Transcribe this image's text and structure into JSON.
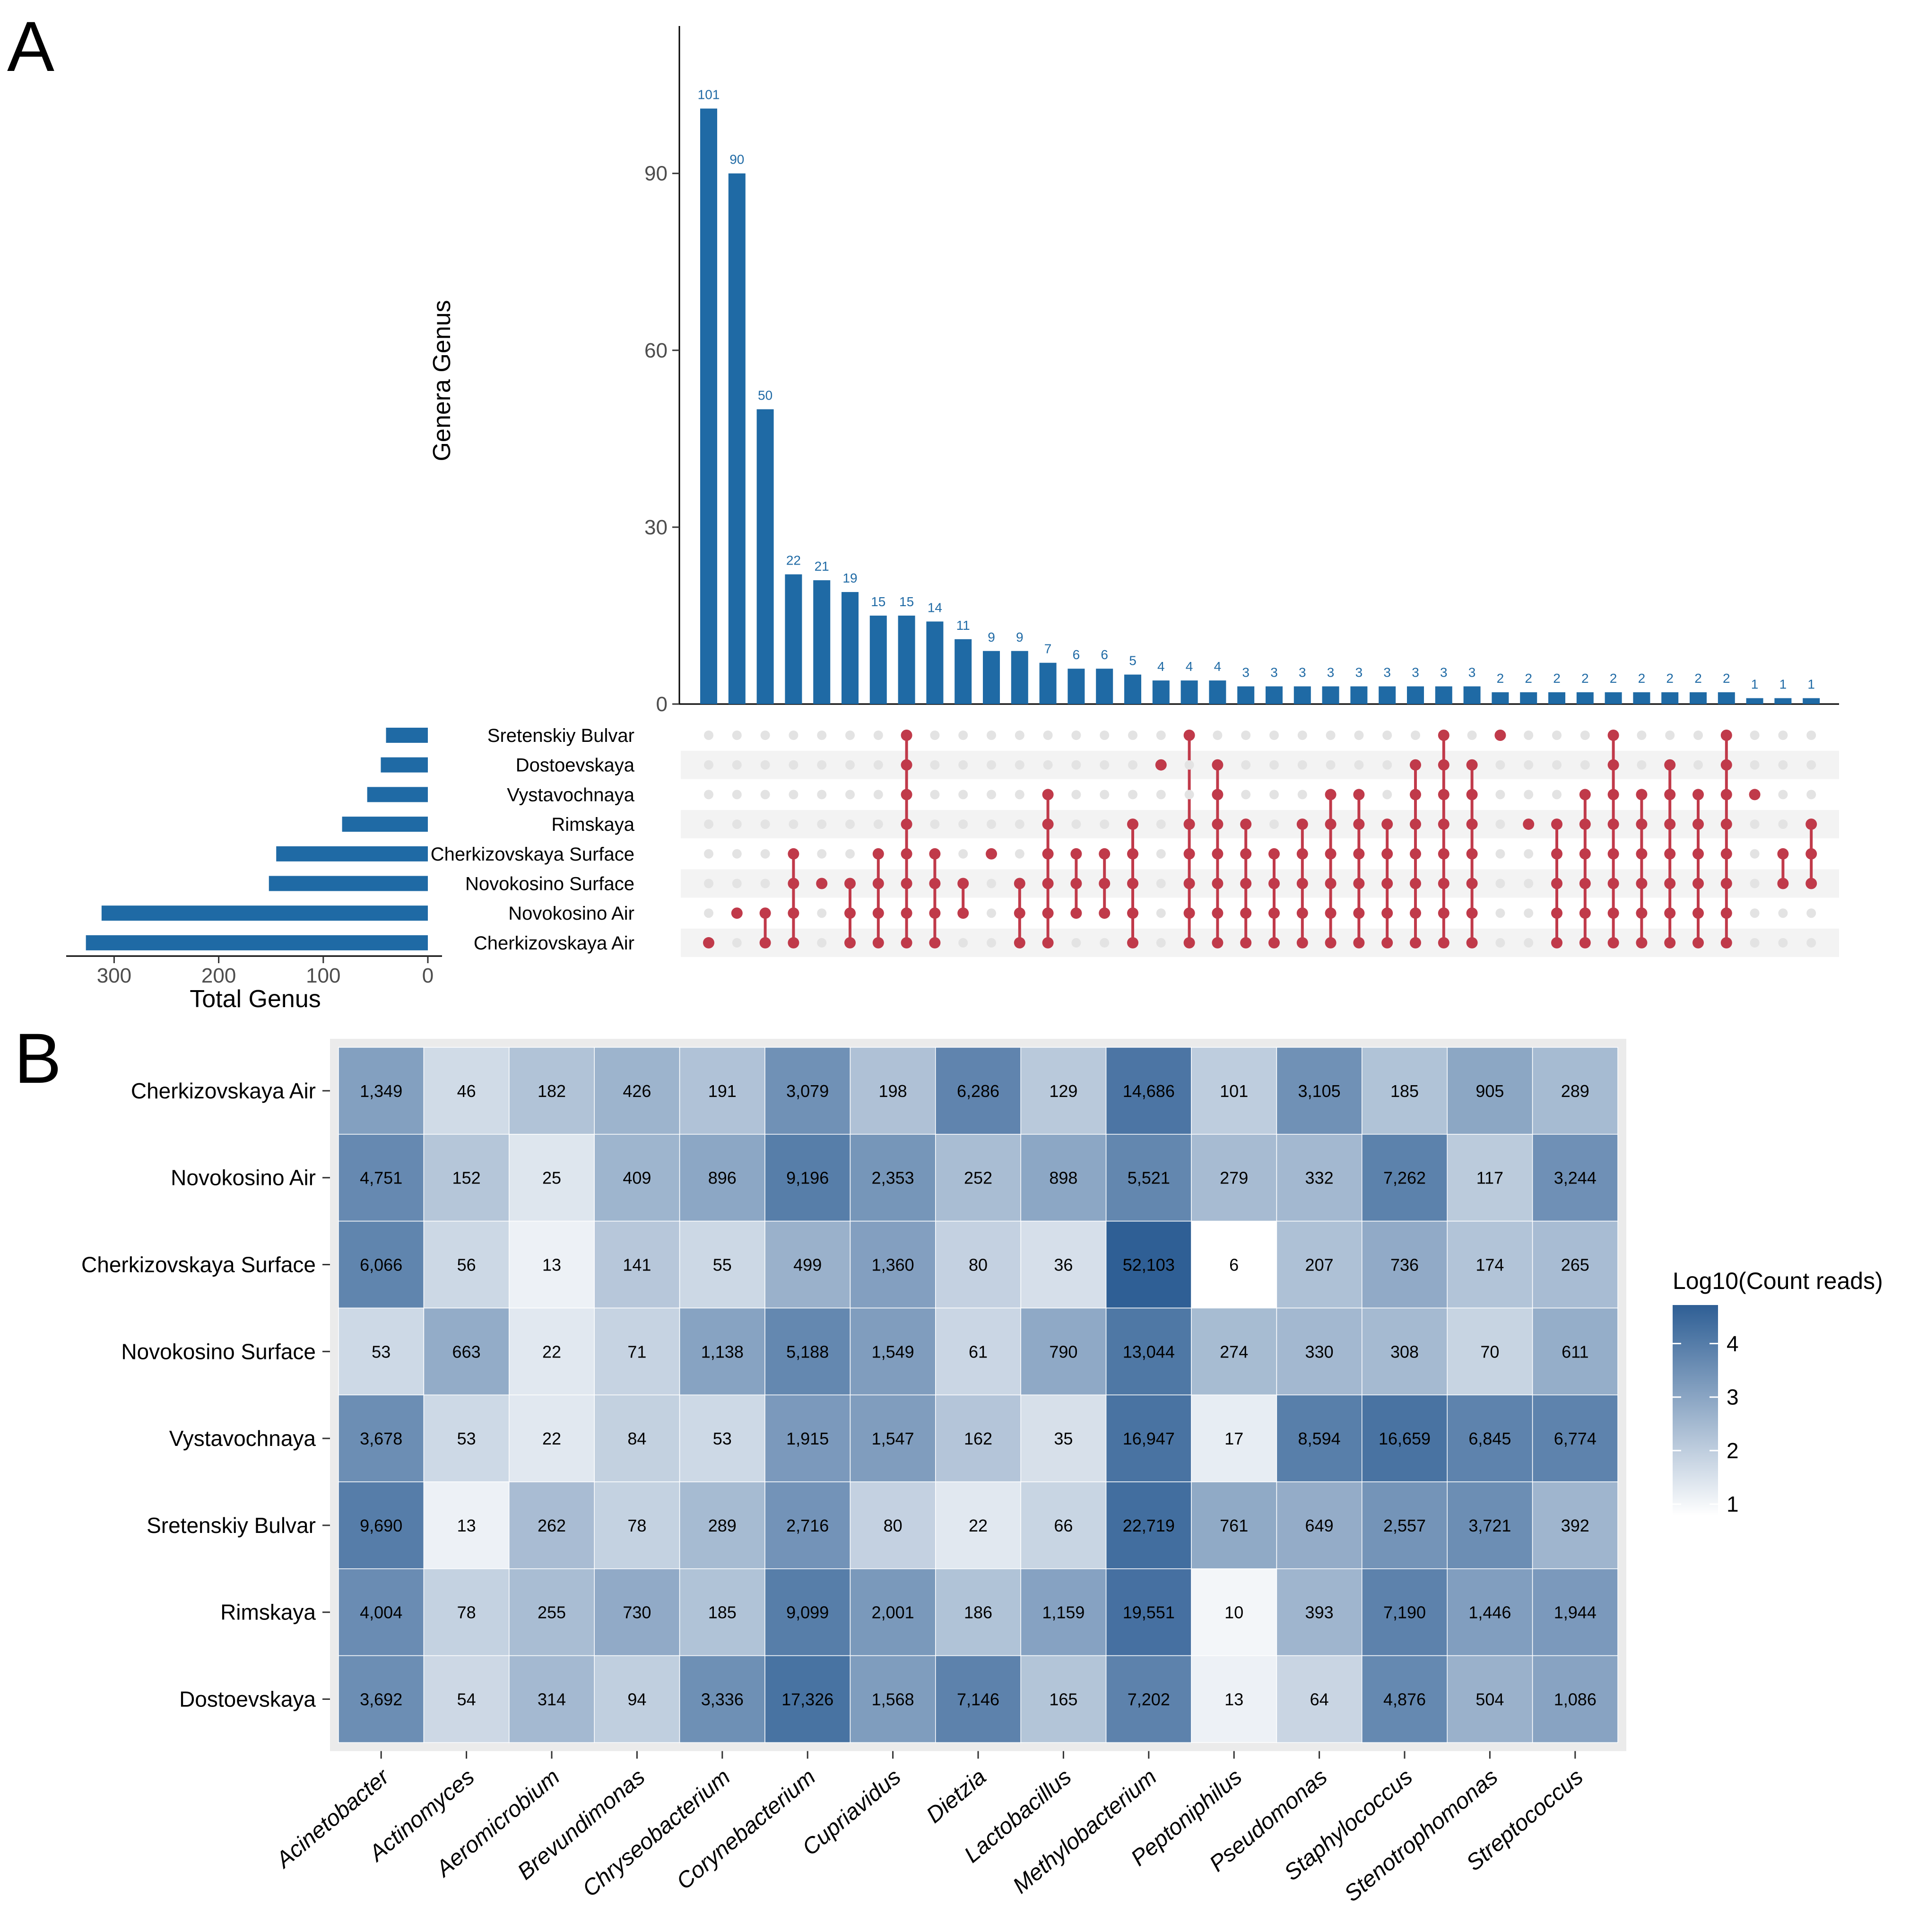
{
  "panels": {
    "a_label": "A",
    "b_label": "B"
  },
  "chart_data": [
    {
      "type": "bar",
      "role": "upset-intersection-sizes",
      "ylabel": "Genera Genus",
      "ylim": [
        0,
        115
      ],
      "yticks": [
        0,
        30,
        60,
        90
      ],
      "values": [
        101,
        90,
        50,
        22,
        21,
        19,
        15,
        15,
        14,
        11,
        9,
        9,
        7,
        6,
        6,
        5,
        4,
        4,
        4,
        3,
        3,
        3,
        3,
        3,
        3,
        3,
        3,
        3,
        2,
        2,
        2,
        2,
        2,
        2,
        2,
        2,
        2,
        1,
        1,
        1
      ],
      "sets": [
        "Sretenskiy Bulvar",
        "Dostoevskaya",
        "Vystavochnaya",
        "Rimskaya",
        "Cherkizovskaya Surface",
        "Novokosino Surface",
        "Novokosino Air",
        "Cherkizovskaya Air"
      ],
      "memberships": [
        [
          7
        ],
        [
          6
        ],
        [
          6,
          7
        ],
        [
          4,
          5,
          6,
          7
        ],
        [
          5
        ],
        [
          5,
          6,
          7
        ],
        [
          4,
          5,
          6,
          7
        ],
        [
          0,
          1,
          2,
          3,
          4,
          5,
          6,
          7
        ],
        [
          4,
          5,
          6,
          7
        ],
        [
          5,
          6
        ],
        [
          4
        ],
        [
          5,
          6,
          7
        ],
        [
          2,
          3,
          4,
          5,
          6,
          7
        ],
        [
          4,
          5,
          6
        ],
        [
          4,
          5,
          6
        ],
        [
          3,
          4,
          5,
          6,
          7
        ],
        [
          1
        ],
        [
          0,
          3,
          4,
          5,
          6,
          7
        ],
        [
          1,
          2,
          3,
          4,
          5,
          6,
          7
        ],
        [
          3,
          4,
          5,
          6,
          7
        ],
        [
          4,
          5,
          6,
          7
        ],
        [
          3,
          4,
          5,
          6,
          7
        ],
        [
          2,
          3,
          4,
          5,
          6,
          7
        ],
        [
          2,
          3,
          4,
          5,
          6,
          7
        ],
        [
          3,
          4,
          5,
          6,
          7
        ],
        [
          1,
          2,
          3,
          4,
          5,
          6,
          7
        ],
        [
          0,
          1,
          2,
          3,
          4,
          5,
          6,
          7
        ],
        [
          1,
          2,
          3,
          4,
          5,
          6,
          7
        ],
        [
          0
        ],
        [
          3
        ],
        [
          3,
          4,
          5,
          6,
          7
        ],
        [
          2,
          3,
          4,
          5,
          6,
          7
        ],
        [
          0,
          1,
          2,
          3,
          4,
          5,
          6,
          7
        ],
        [
          2,
          3,
          4,
          5,
          6,
          7
        ],
        [
          1,
          2,
          3,
          4,
          5,
          6,
          7
        ],
        [
          2,
          3,
          4,
          5,
          6,
          7
        ],
        [
          0,
          1,
          2,
          3,
          4,
          5,
          6,
          7
        ],
        [
          2
        ],
        [
          4,
          5
        ],
        [
          3,
          4,
          5
        ]
      ]
    },
    {
      "type": "bar",
      "role": "set-sizes",
      "orientation": "horizontal",
      "xlabel": "Total Genus",
      "xlim": [
        0,
        345
      ],
      "xticks": [
        300,
        200,
        100,
        0
      ],
      "categories": [
        "Sretenskiy Bulvar",
        "Dostoevskaya",
        "Vystavochnaya",
        "Rimskaya",
        "Cherkizovskaya Surface",
        "Novokosino Surface",
        "Novokosino Air",
        "Cherkizovskaya Air"
      ],
      "values": [
        40,
        45,
        58,
        82,
        145,
        152,
        312,
        327
      ]
    },
    {
      "type": "heatmap",
      "legend_title": "Log10(Count reads)",
      "legend_ticks": [
        "4",
        "3",
        "2",
        "1"
      ],
      "scale_range": [
        0.78,
        4.72
      ],
      "rows": [
        "Cherkizovskaya Air",
        "Novokosino Air",
        "Cherkizovskaya Surface",
        "Novokosino Surface",
        "Vystavochnaya",
        "Sretenskiy Bulvar",
        "Rimskaya",
        "Dostoevskaya"
      ],
      "cols": [
        "Acinetobacter",
        "Actinomyces",
        "Aeromicrobium",
        "Brevundimonas",
        "Chryseobacterium",
        "Corynebacterium",
        "Cupriavidus",
        "Dietzia",
        "Lactobacillus",
        "Methylobacterium",
        "Peptoniphilus",
        "Pseudomonas",
        "Staphylococcus",
        "Stenotrophomonas",
        "Streptococcus"
      ],
      "values": [
        [
          1349,
          46,
          182,
          426,
          191,
          3079,
          198,
          6286,
          129,
          14686,
          101,
          3105,
          185,
          905,
          289
        ],
        [
          4751,
          152,
          25,
          409,
          896,
          9196,
          2353,
          252,
          898,
          5521,
          279,
          332,
          7262,
          117,
          3244
        ],
        [
          6066,
          56,
          13,
          141,
          55,
          499,
          1360,
          80,
          36,
          52103,
          6,
          207,
          736,
          174,
          265
        ],
        [
          53,
          663,
          22,
          71,
          1138,
          5188,
          1549,
          61,
          790,
          13044,
          274,
          330,
          308,
          70,
          611
        ],
        [
          3678,
          53,
          22,
          84,
          53,
          1915,
          1547,
          162,
          35,
          16947,
          17,
          8594,
          16659,
          6845,
          6774
        ],
        [
          9690,
          13,
          262,
          78,
          289,
          2716,
          80,
          22,
          66,
          22719,
          761,
          649,
          2557,
          3721,
          392
        ],
        [
          4004,
          78,
          255,
          730,
          185,
          9099,
          2001,
          186,
          1159,
          19551,
          10,
          393,
          7190,
          1446,
          1944
        ],
        [
          3692,
          54,
          314,
          94,
          3336,
          17326,
          1568,
          7146,
          165,
          7202,
          13,
          64,
          4876,
          504,
          1086
        ]
      ],
      "labels": [
        [
          "1,349",
          "46",
          "182",
          "426",
          "191",
          "3,079",
          "198",
          "6,286",
          "129",
          "14,686",
          "101",
          "3,105",
          "185",
          "905",
          "289"
        ],
        [
          "4,751",
          "152",
          "25",
          "409",
          "896",
          "9,196",
          "2,353",
          "252",
          "898",
          "5,521",
          "279",
          "332",
          "7,262",
          "117",
          "3,244"
        ],
        [
          "6,066",
          "56",
          "13",
          "141",
          "55",
          "499",
          "1,360",
          "80",
          "36",
          "52,103",
          "6",
          "207",
          "736",
          "174",
          "265"
        ],
        [
          "53",
          "663",
          "22",
          "71",
          "1,138",
          "5,188",
          "1,549",
          "61",
          "790",
          "13,044",
          "274",
          "330",
          "308",
          "70",
          "611"
        ],
        [
          "3,678",
          "53",
          "22",
          "84",
          "53",
          "1,915",
          "1,547",
          "162",
          "35",
          "16,947",
          "17",
          "8,594",
          "16,659",
          "6,845",
          "6,774"
        ],
        [
          "9,690",
          "13",
          "262",
          "78",
          "289",
          "2,716",
          "80",
          "22",
          "66",
          "22,719",
          "761",
          "649",
          "2,557",
          "3,721",
          "392"
        ],
        [
          "4,004",
          "78",
          "255",
          "730",
          "185",
          "9,099",
          "2,001",
          "186",
          "1,159",
          "19,551",
          "10",
          "393",
          "7,190",
          "1,446",
          "1,944"
        ],
        [
          "3,692",
          "54",
          "314",
          "94",
          "3,336",
          "17,326",
          "1,568",
          "7,146",
          "165",
          "7,202",
          "13",
          "64",
          "4,876",
          "504",
          "1,086"
        ]
      ]
    }
  ],
  "colors": {
    "bar": "#1f6aa5",
    "dot_active": "#c03a4a",
    "dot_inactive": "#e3e3e3",
    "stripe": "#f3f3f3",
    "heat_low": "#ffffff",
    "heat_high": "#2f5f95",
    "panel_bg": "#ebebeb",
    "label": "#1f6aa5"
  }
}
